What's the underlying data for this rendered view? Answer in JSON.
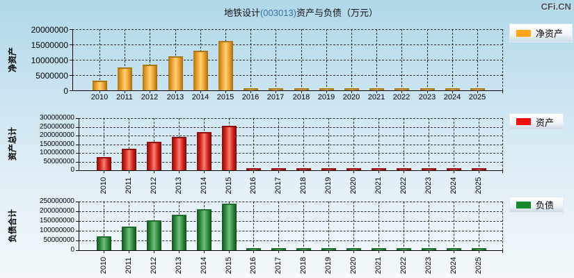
{
  "page": {
    "title": {
      "prefix": "地铁设计",
      "code": "(003013)",
      "suffix": "资产与负债（万元）",
      "code_color": "#3a6ea5"
    },
    "watermark": "CFi.CN"
  },
  "legends": [
    {
      "label": "净资产",
      "color": "#ffa516"
    },
    {
      "label": "资产",
      "color": "#f40d0d"
    },
    {
      "label": "负债",
      "color": "#178a2c"
    }
  ],
  "chart_data": [
    {
      "type": "bar",
      "title": "净资产",
      "ylabel": "净资产",
      "legend": "净资产",
      "bar_color": "#f0a830",
      "grid": true,
      "x_label_rotation": 0,
      "categories": [
        "2010",
        "2011",
        "2012",
        "2013",
        "2014",
        "2015",
        "2016",
        "2017",
        "2018",
        "2019",
        "2020",
        "2021",
        "2022",
        "2023",
        "2024",
        "2025"
      ],
      "values": [
        3200000,
        7500000,
        8500000,
        11200000,
        13000000,
        16200000,
        400000,
        400000,
        400000,
        400000,
        400000,
        400000,
        400000,
        400000,
        400000,
        400000
      ],
      "ylim": [
        0,
        20000000
      ],
      "ytick_step": 5000000
    },
    {
      "type": "bar",
      "title": "资产总计",
      "ylabel": "资产总计",
      "legend": "资产",
      "bar_color": "#d8231b",
      "grid": true,
      "x_label_rotation": -90,
      "categories": [
        "2010",
        "2011",
        "2012",
        "2013",
        "2014",
        "2015",
        "2016",
        "2017",
        "2018",
        "2019",
        "2020",
        "2021",
        "2022",
        "2023",
        "2024",
        "2025"
      ],
      "values": [
        75000000,
        125000000,
        162000000,
        191000000,
        219000000,
        255000000,
        6000000,
        6000000,
        6000000,
        6000000,
        6000000,
        6000000,
        6000000,
        6000000,
        6000000,
        6000000
      ],
      "ylim": [
        0,
        300000000
      ],
      "ytick_step": 50000000
    },
    {
      "type": "bar",
      "title": "负债合计",
      "ylabel": "负债合计",
      "legend": "负债",
      "bar_color": "#2e8d3d",
      "grid": true,
      "x_label_rotation": -90,
      "categories": [
        "2010",
        "2011",
        "2012",
        "2013",
        "2014",
        "2015",
        "2016",
        "2017",
        "2018",
        "2019",
        "2020",
        "2021",
        "2022",
        "2023",
        "2024",
        "2025"
      ],
      "values": [
        70000000,
        121000000,
        152000000,
        181000000,
        210000000,
        238000000,
        4000000,
        4000000,
        4000000,
        4000000,
        4000000,
        4000000,
        4000000,
        4000000,
        4000000,
        4000000
      ],
      "ylim": [
        0,
        250000000
      ],
      "ytick_step": 50000000
    }
  ]
}
